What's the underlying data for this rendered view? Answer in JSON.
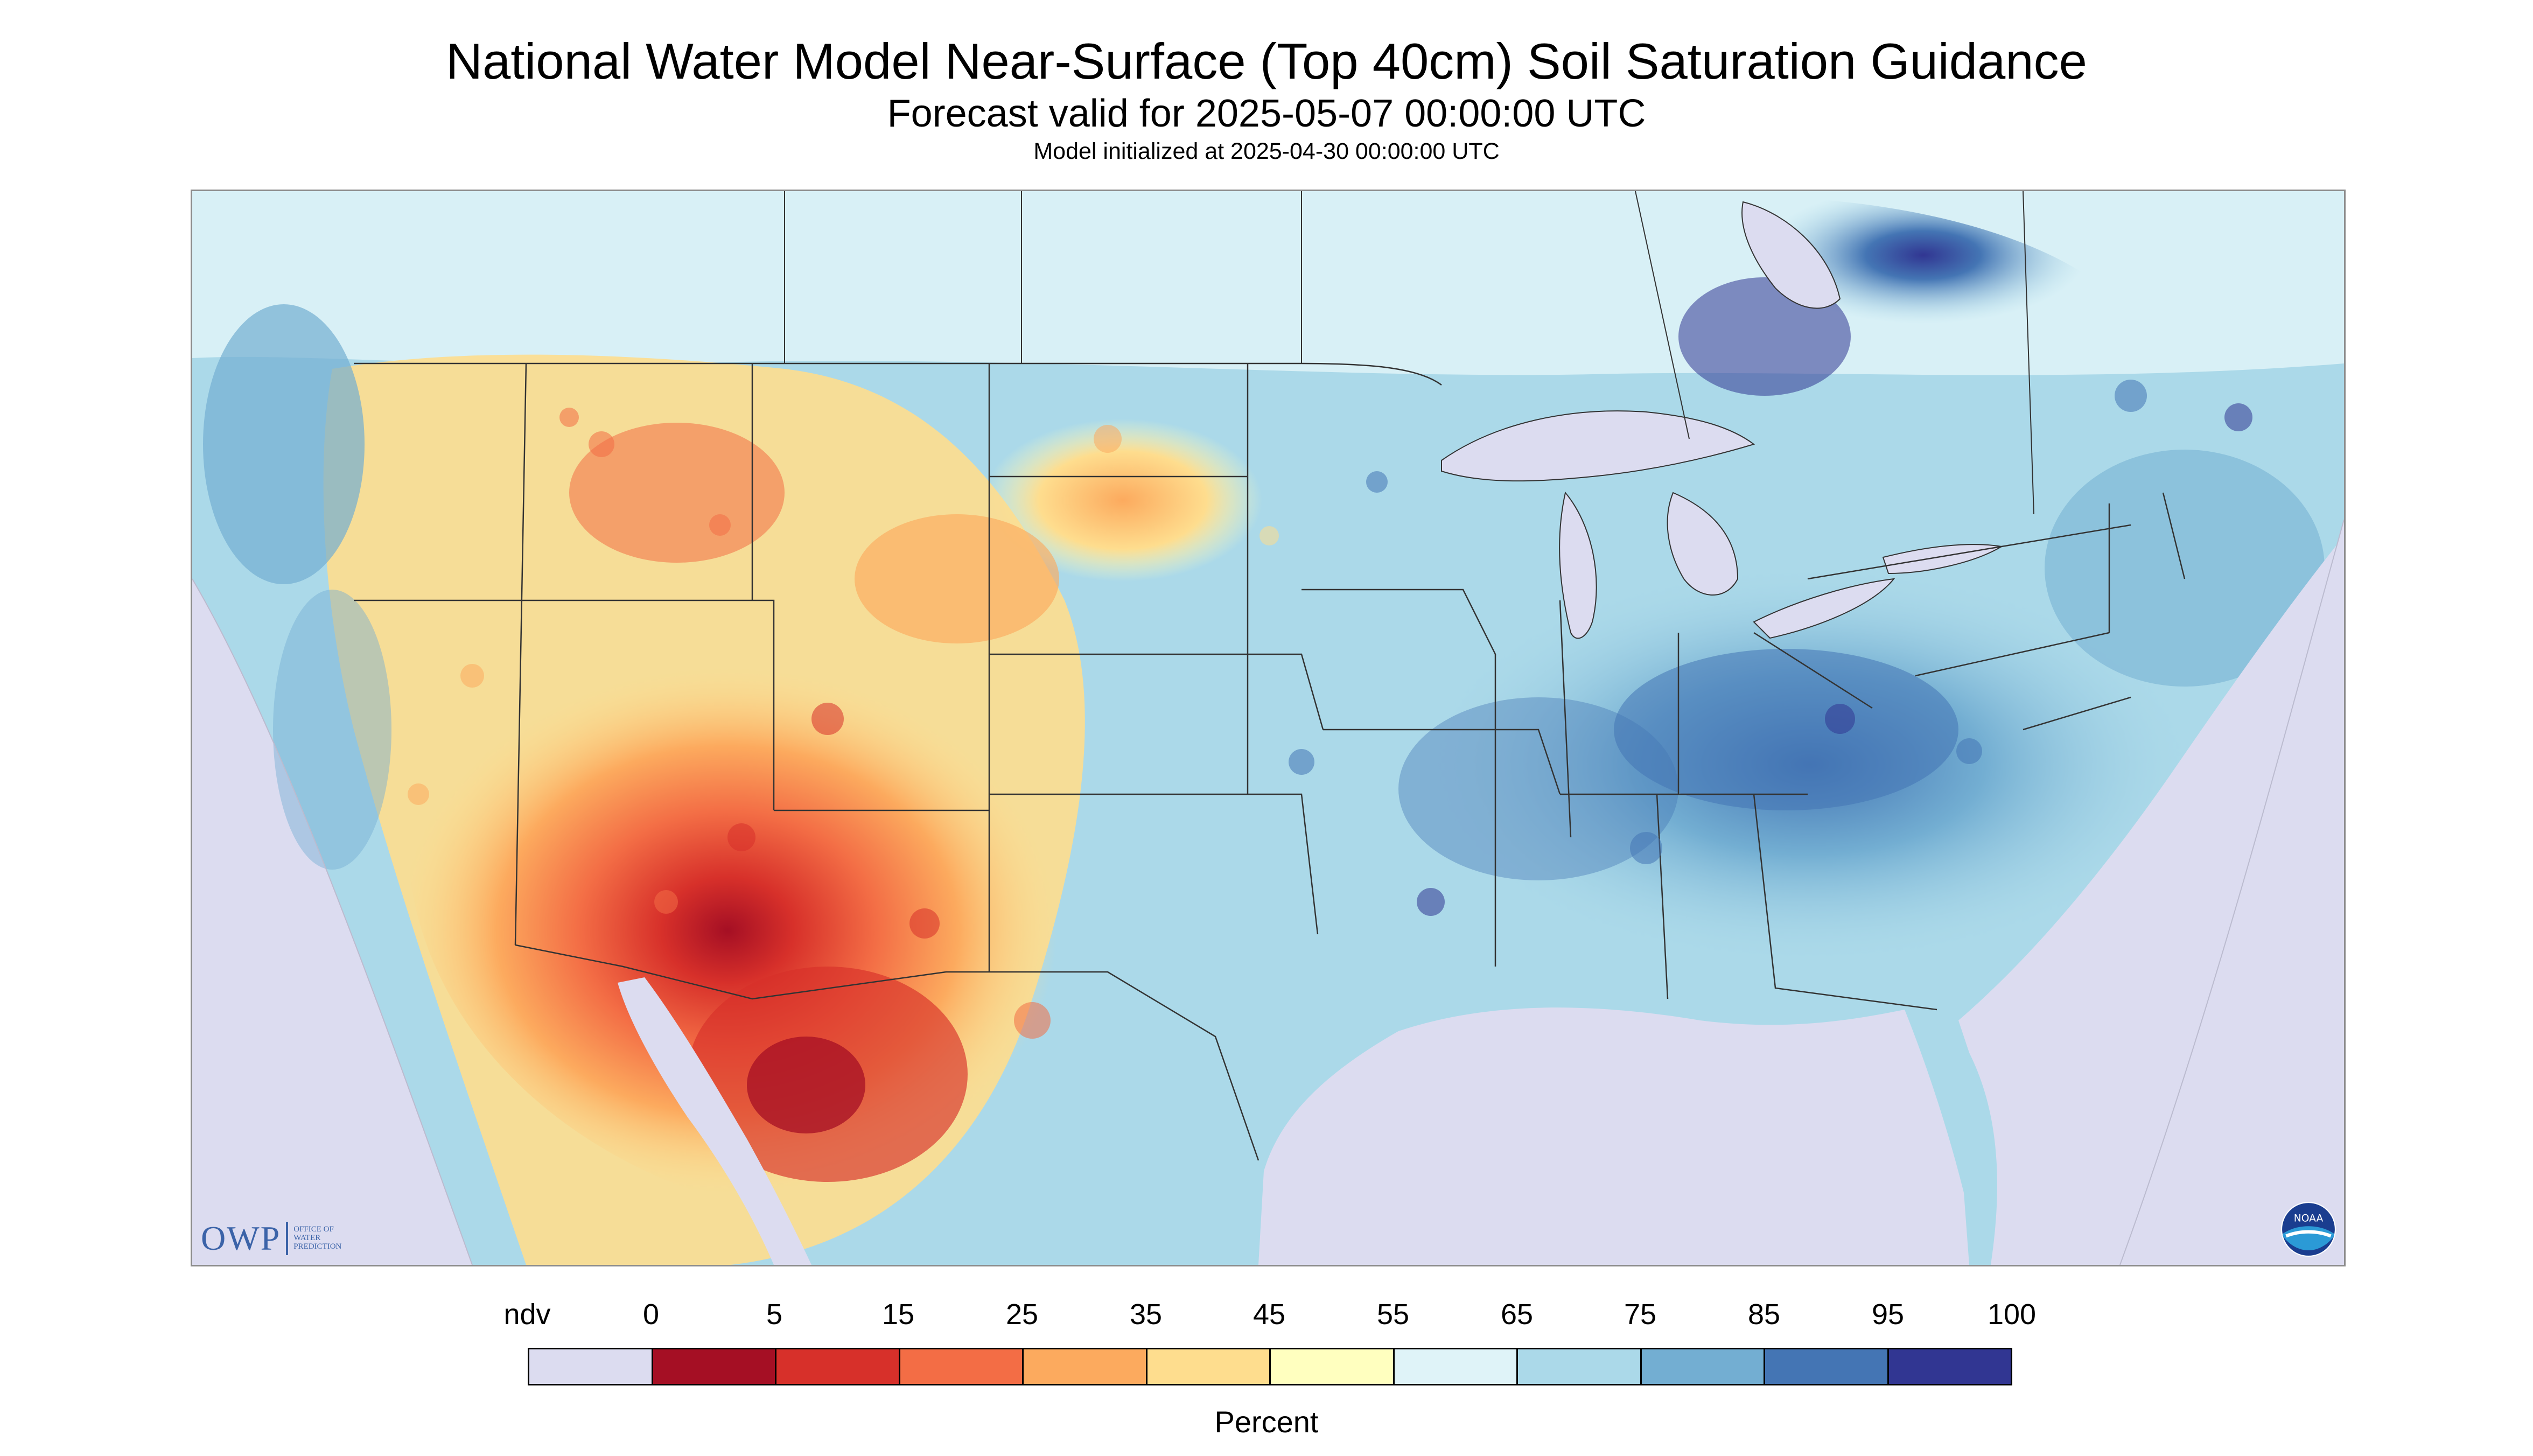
{
  "title": "National Water Model Near-Surface (Top 40cm) Soil Saturation Guidance",
  "subtitle": "Forecast valid for 2025-05-07 00:00:00 UTC",
  "init_line": "Model initialized at 2025-04-30 00:00:00 UTC",
  "legend": {
    "ndv_label": "ndv",
    "tick_labels": [
      "0",
      "5",
      "15",
      "25",
      "35",
      "45",
      "55",
      "65",
      "75",
      "85",
      "95",
      "100"
    ],
    "colors": [
      "#dcdcf0",
      "#a50f24",
      "#d7302a",
      "#f36d45",
      "#fcaa5e",
      "#fedd8e",
      "#ffffbf",
      "#dff3f8",
      "#abd9e9",
      "#73aed2",
      "#4475b4",
      "#313692"
    ],
    "units": "Percent"
  },
  "map": {
    "icons": [
      "owp-logo",
      "noaa-logo"
    ],
    "owp_logo_text": "OWP",
    "owp_logo_subtext": "OFFICE OF\nWATER\nPREDICTION",
    "noaa_text": "NOAA",
    "water_color": "#dcdcf0",
    "border_color": "#333333"
  }
}
